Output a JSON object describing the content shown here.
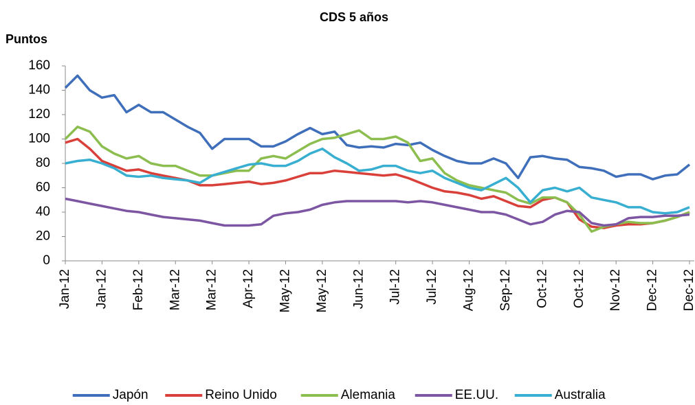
{
  "chart_data": {
    "type": "line",
    "title": "CDS 5 años",
    "y_label": "Puntos",
    "categories": [
      "Jan-12",
      null,
      null,
      "Jan-12",
      null,
      null,
      "Feb-12",
      null,
      null,
      "Mar-12",
      null,
      null,
      "Mar-12",
      null,
      null,
      "Apr-12",
      null,
      null,
      "May-12",
      null,
      null,
      "May-12",
      null,
      null,
      "Jun-12",
      null,
      null,
      "Jul-12",
      null,
      null,
      "Jul-12",
      null,
      null,
      "Aug-12",
      null,
      null,
      "Sep-12",
      null,
      null,
      "Oct-12",
      null,
      null,
      "Oct-12",
      null,
      null,
      "Nov-12",
      null,
      null,
      "Dec-12",
      null,
      null,
      "Dec-12"
    ],
    "series": [
      {
        "name": "Japón",
        "color": "#3f6fba",
        "values": [
          142,
          152,
          140,
          134,
          136,
          122,
          128,
          122,
          122,
          116,
          110,
          105,
          92,
          100,
          100,
          100,
          94,
          94,
          98,
          104,
          109,
          104,
          106,
          95,
          93,
          94,
          93,
          96,
          95,
          97,
          91,
          86,
          82,
          80,
          80,
          84,
          80,
          68,
          85,
          86,
          84,
          83,
          77,
          76,
          74,
          69,
          71,
          71,
          67,
          70,
          71,
          79
        ]
      },
      {
        "name": "Reino Unido",
        "color": "#d9403a",
        "values": [
          97,
          100,
          92,
          82,
          78,
          74,
          75,
          72,
          70,
          68,
          66,
          62,
          62,
          63,
          64,
          65,
          63,
          64,
          66,
          69,
          72,
          72,
          74,
          73,
          72,
          71,
          70,
          71,
          68,
          64,
          60,
          57,
          56,
          54,
          51,
          53,
          49,
          45,
          44,
          50,
          52,
          48,
          34,
          28,
          27,
          29,
          30,
          30,
          31,
          33,
          36,
          40
        ]
      },
      {
        "name": "Alemania",
        "color": "#8cbd4f",
        "values": [
          100,
          110,
          106,
          94,
          88,
          84,
          86,
          80,
          78,
          78,
          74,
          70,
          70,
          72,
          74,
          74,
          84,
          86,
          84,
          90,
          96,
          100,
          101,
          104,
          107,
          100,
          100,
          102,
          97,
          82,
          84,
          72,
          66,
          62,
          60,
          58,
          56,
          50,
          47,
          52,
          52,
          48,
          38,
          24,
          28,
          30,
          32,
          31,
          31,
          33,
          36,
          40
        ]
      },
      {
        "name": "EE.UU.",
        "color": "#7c56a2",
        "values": [
          51,
          49,
          47,
          45,
          43,
          41,
          40,
          38,
          36,
          35,
          34,
          33,
          31,
          29,
          29,
          29,
          30,
          37,
          39,
          40,
          42,
          46,
          48,
          49,
          49,
          49,
          49,
          49,
          48,
          49,
          48,
          46,
          44,
          42,
          40,
          40,
          38,
          34,
          30,
          32,
          38,
          41,
          40,
          31,
          29,
          30,
          35,
          36,
          36,
          37,
          37,
          38
        ]
      },
      {
        "name": "Australia",
        "color": "#38aed0",
        "values": [
          80,
          82,
          83,
          80,
          76,
          70,
          69,
          70,
          68,
          67,
          66,
          64,
          70,
          73,
          76,
          79,
          80,
          78,
          78,
          82,
          88,
          92,
          85,
          80,
          74,
          75,
          78,
          78,
          74,
          72,
          74,
          68,
          64,
          60,
          58,
          63,
          68,
          60,
          48,
          58,
          60,
          57,
          60,
          52,
          50,
          48,
          44,
          44,
          40,
          39,
          40,
          44
        ]
      }
    ],
    "ylim": [
      0,
      160
    ],
    "yticks": [
      0,
      20,
      40,
      60,
      80,
      100,
      120,
      140,
      160
    ],
    "grid": false,
    "legend": "bottom"
  }
}
